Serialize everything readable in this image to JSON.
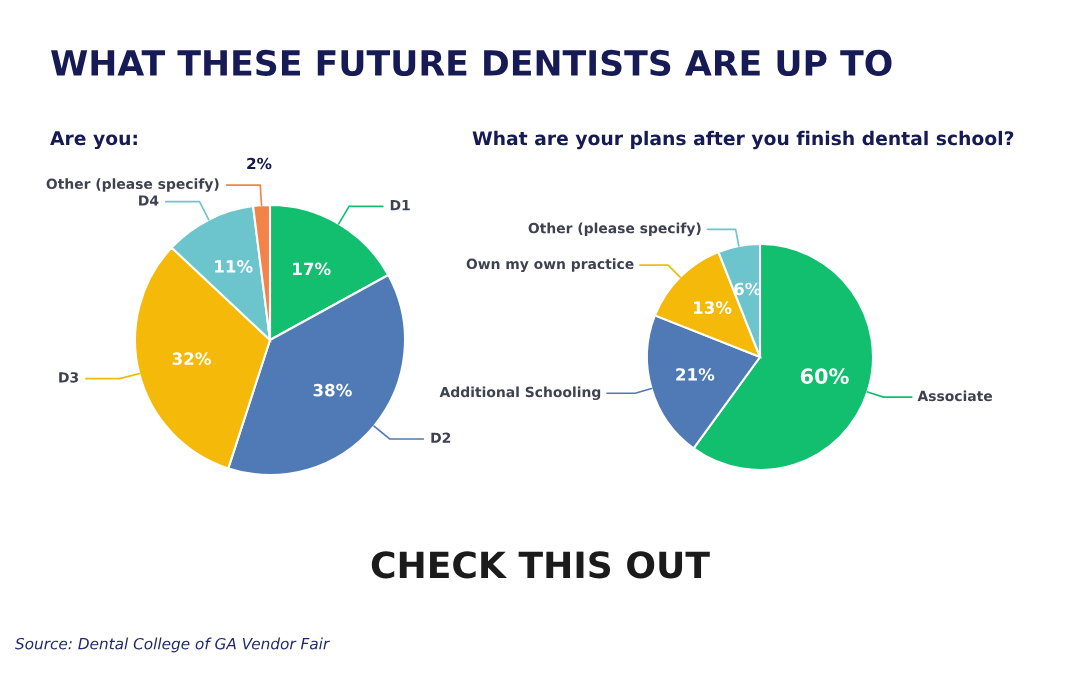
{
  "chart_data": [
    {
      "type": "other",
      "title": "WHAT THESE FUTURE DENTISTS ARE UP TO",
      "annotations": [
        "CHECK THIS OUT",
        "Source: Dental College of GA Vendor Fair"
      ]
    },
    {
      "type": "pie",
      "title": "Are you:",
      "categories": [
        "D1",
        "D2",
        "D3",
        "D4",
        "Other (please specify)"
      ],
      "values": [
        17,
        38,
        32,
        11,
        2
      ],
      "value_labels": [
        "17%",
        "38%",
        "32%",
        "11%",
        "2%"
      ],
      "colors": [
        "#12bf6e",
        "#4f7ab5",
        "#f5b90a",
        "#6cc5cd",
        "#f2844a"
      ]
    },
    {
      "type": "pie",
      "title": "What are your plans after you finish dental school?",
      "categories": [
        "Associate",
        "Additional Schooling",
        "Own my own practice",
        "Other (please specify)"
      ],
      "values": [
        60,
        21,
        13,
        6
      ],
      "value_labels": [
        "60%",
        "21%",
        "13%",
        "6%"
      ],
      "colors": [
        "#12bf6e",
        "#4f7ab5",
        "#f5b90a",
        "#6cc5cd"
      ]
    }
  ]
}
